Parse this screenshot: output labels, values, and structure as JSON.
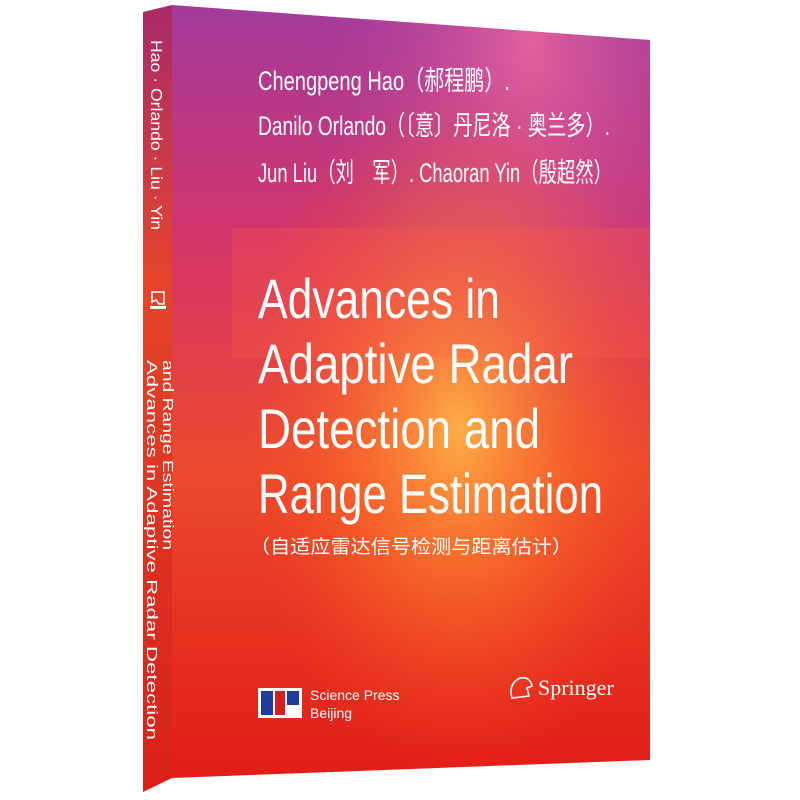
{
  "spine": {
    "authors": "Hao · Orlando · Liu · Yin",
    "title_lines": [
      "Advances in Adaptive Radar Detection",
      "and Range Estimation"
    ]
  },
  "cover": {
    "author_lines": [
      "Chengpeng Hao（郝程鹏）.",
      "Danilo Orlando（〔意〕丹尼洛 · 奥兰多）.",
      "Jun Liu（刘　军）. Chaoran Yin（殷超然）"
    ],
    "title_lines": [
      "Advances in",
      "Adaptive Radar",
      "Detection and",
      "Range Estimation"
    ],
    "subtitle": "（自适应雷达信号检测与距离估计）",
    "publisher": {
      "name": "Science Press",
      "city": "Beijing"
    },
    "copublisher": "Springer"
  }
}
